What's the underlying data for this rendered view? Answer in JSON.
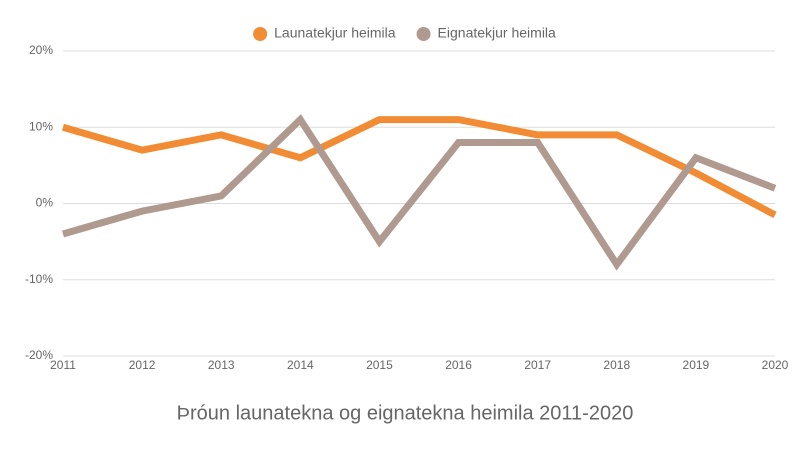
{
  "chart_data": {
    "type": "line",
    "title": "Þróun launatekna og eignatekna heimila 2011-2020",
    "categories": [
      "2011",
      "2012",
      "2013",
      "2014",
      "2015",
      "2016",
      "2017",
      "2018",
      "2019",
      "2020"
    ],
    "series": [
      {
        "name": "Launatekjur heimila",
        "color": "#f28c34",
        "values": [
          10,
          7,
          9,
          6,
          11,
          11,
          9,
          9,
          4,
          -1.5
        ]
      },
      {
        "name": "Eignatekjur heimila",
        "color": "#b09a8f",
        "values": [
          -4,
          -1,
          1,
          11,
          -5,
          8,
          8,
          -8,
          6,
          2
        ]
      }
    ],
    "ylim": [
      -20,
      20
    ],
    "yticks": [
      {
        "value": -20,
        "label": "-20%"
      },
      {
        "value": -10,
        "label": "-10%"
      },
      {
        "value": 0,
        "label": "0%"
      },
      {
        "value": 10,
        "label": "10%"
      },
      {
        "value": 20,
        "label": "20%"
      }
    ],
    "grid": true,
    "legend": "top"
  }
}
